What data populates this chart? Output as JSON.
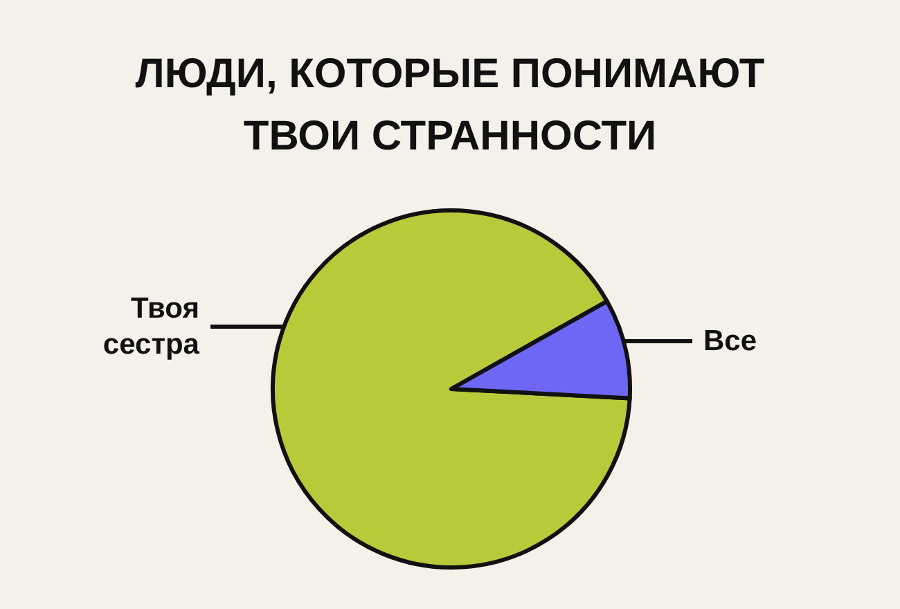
{
  "chart_data": {
    "type": "pie",
    "title": "ЛЮДИ, КОТОРЫЕ ПОНИМАЮТ ТВОИ СТРАННОСТИ",
    "categories": [
      "Твоя сестра",
      "Все"
    ],
    "values": [
      91,
      9
    ],
    "colors": [
      "#b8c93a",
      "#6e66f5"
    ],
    "legend": false
  }
}
